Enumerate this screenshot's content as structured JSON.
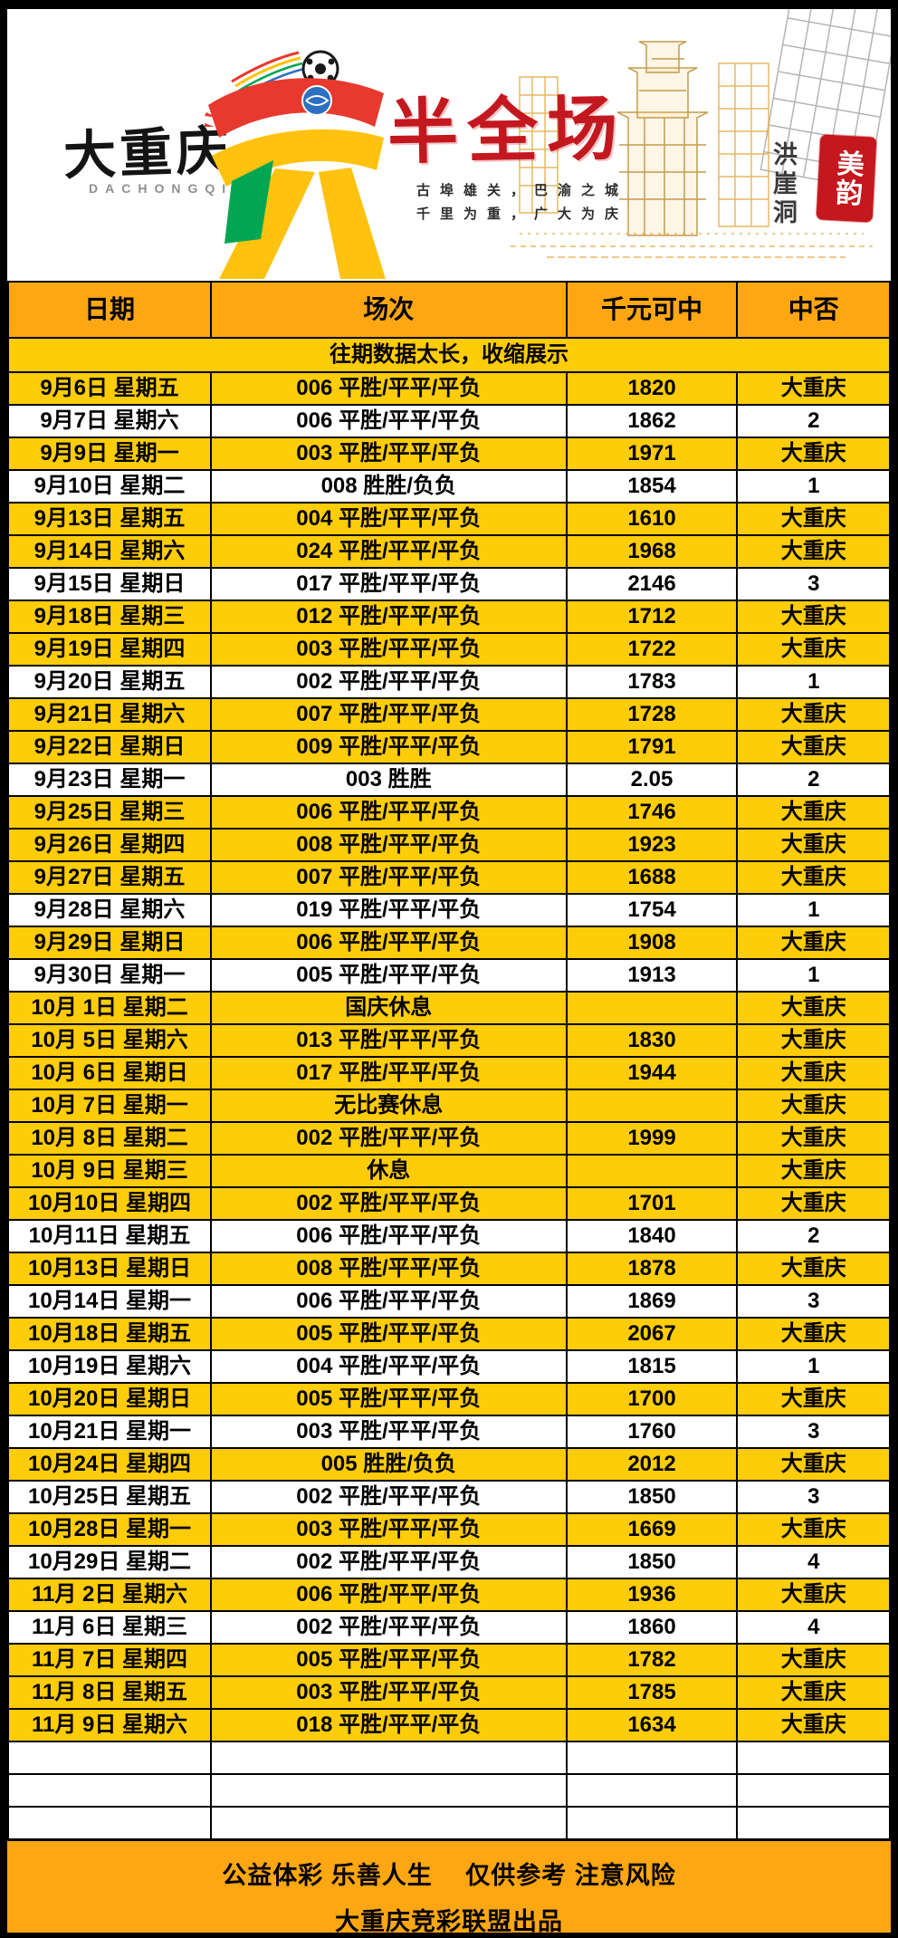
{
  "header": {
    "brand": "大重庆",
    "brand_latin": "DACHONGQING",
    "title": "半全场",
    "tagline_line1": "古埠雄关，巴渝之城",
    "tagline_line2": "千里为重，广大为庆",
    "landmark": "洪崖洞",
    "seal_text": "美韵"
  },
  "table": {
    "columns": [
      "日期",
      "场次",
      "千元可中",
      "中否"
    ],
    "collapse_notice": "往期数据太长，收缩展示",
    "rows": [
      {
        "date": "9月6日 星期五",
        "match": "006 平胜/平平/平负",
        "odds": "1820",
        "result": "大重庆",
        "gold": true
      },
      {
        "date": "9月7日 星期六",
        "match": "006 平胜/平平/平负",
        "odds": "1862",
        "result": "2",
        "gold": false
      },
      {
        "date": "9月9日 星期一",
        "match": "003 平胜/平平/平负",
        "odds": "1971",
        "result": "大重庆",
        "gold": true
      },
      {
        "date": "9月10日 星期二",
        "match": "008 胜胜/负负",
        "odds": "1854",
        "result": "1",
        "gold": false
      },
      {
        "date": "9月13日 星期五",
        "match": "004 平胜/平平/平负",
        "odds": "1610",
        "result": "大重庆",
        "gold": true
      },
      {
        "date": "9月14日 星期六",
        "match": "024 平胜/平平/平负",
        "odds": "1968",
        "result": "大重庆",
        "gold": true
      },
      {
        "date": "9月15日 星期日",
        "match": "017 平胜/平平/平负",
        "odds": "2146",
        "result": "3",
        "gold": false
      },
      {
        "date": "9月18日 星期三",
        "match": "012 平胜/平平/平负",
        "odds": "1712",
        "result": "大重庆",
        "gold": true
      },
      {
        "date": "9月19日 星期四",
        "match": "003 平胜/平平/平负",
        "odds": "1722",
        "result": "大重庆",
        "gold": true
      },
      {
        "date": "9月20日 星期五",
        "match": "002 平胜/平平/平负",
        "odds": "1783",
        "result": "1",
        "gold": false
      },
      {
        "date": "9月21日 星期六",
        "match": "007 平胜/平平/平负",
        "odds": "1728",
        "result": "大重庆",
        "gold": true
      },
      {
        "date": "9月22日 星期日",
        "match": "009 平胜/平平/平负",
        "odds": "1791",
        "result": "大重庆",
        "gold": true
      },
      {
        "date": "9月23日 星期一",
        "match": "003 胜胜",
        "odds": "2.05",
        "result": "2",
        "gold": false
      },
      {
        "date": "9月25日 星期三",
        "match": "006 平胜/平平/平负",
        "odds": "1746",
        "result": "大重庆",
        "gold": true
      },
      {
        "date": "9月26日 星期四",
        "match": "008 平胜/平平/平负",
        "odds": "1923",
        "result": "大重庆",
        "gold": true
      },
      {
        "date": "9月27日 星期五",
        "match": "007 平胜/平平/平负",
        "odds": "1688",
        "result": "大重庆",
        "gold": true
      },
      {
        "date": "9月28日 星期六",
        "match": "019 平胜/平平/平负",
        "odds": "1754",
        "result": "1",
        "gold": false
      },
      {
        "date": "9月29日 星期日",
        "match": "006 平胜/平平/平负",
        "odds": "1908",
        "result": "大重庆",
        "gold": true
      },
      {
        "date": "9月30日 星期一",
        "match": "005 平胜/平平/平负",
        "odds": "1913",
        "result": "1",
        "gold": false
      },
      {
        "date": "10月 1日 星期二",
        "match": "国庆休息",
        "odds": "",
        "result": "大重庆",
        "gold": true
      },
      {
        "date": "10月 5日 星期六",
        "match": "013 平胜/平平/平负",
        "odds": "1830",
        "result": "大重庆",
        "gold": true
      },
      {
        "date": "10月 6日 星期日",
        "match": "017 平胜/平平/平负",
        "odds": "1944",
        "result": "大重庆",
        "gold": true
      },
      {
        "date": "10月 7日 星期一",
        "match": "无比赛休息",
        "odds": "",
        "result": "大重庆",
        "gold": true
      },
      {
        "date": "10月 8日 星期二",
        "match": "002 平胜/平平/平负",
        "odds": "1999",
        "result": "大重庆",
        "gold": true
      },
      {
        "date": "10月 9日 星期三",
        "match": "休息",
        "odds": "",
        "result": "大重庆",
        "gold": true
      },
      {
        "date": "10月10日 星期四",
        "match": "002 平胜/平平/平负",
        "odds": "1701",
        "result": "大重庆",
        "gold": true
      },
      {
        "date": "10月11日 星期五",
        "match": "006 平胜/平平/平负",
        "odds": "1840",
        "result": "2",
        "gold": false
      },
      {
        "date": "10月13日 星期日",
        "match": "008 平胜/平平/平负",
        "odds": "1878",
        "result": "大重庆",
        "gold": true
      },
      {
        "date": "10月14日 星期一",
        "match": "006 平胜/平平/平负",
        "odds": "1869",
        "result": "3",
        "gold": false
      },
      {
        "date": "10月18日 星期五",
        "match": "005 平胜/平平/平负",
        "odds": "2067",
        "result": "大重庆",
        "gold": true
      },
      {
        "date": "10月19日 星期六",
        "match": "004 平胜/平平/平负",
        "odds": "1815",
        "result": "1",
        "gold": false
      },
      {
        "date": "10月20日 星期日",
        "match": "005 平胜/平平/平负",
        "odds": "1700",
        "result": "大重庆",
        "gold": true
      },
      {
        "date": "10月21日 星期一",
        "match": "003 平胜/平平/平负",
        "odds": "1760",
        "result": "3",
        "gold": false
      },
      {
        "date": "10月24日 星期四",
        "match": "005 胜胜/负负",
        "odds": "2012",
        "result": "大重庆",
        "gold": true
      },
      {
        "date": "10月25日 星期五",
        "match": "002 平胜/平平/平负",
        "odds": "1850",
        "result": "3",
        "gold": false
      },
      {
        "date": "10月28日 星期一",
        "match": "003 平胜/平平/平负",
        "odds": "1669",
        "result": "大重庆",
        "gold": true
      },
      {
        "date": "10月29日 星期二",
        "match": "002 平胜/平平/平负",
        "odds": "1850",
        "result": "4",
        "gold": false
      },
      {
        "date": "11月 2日 星期六",
        "match": "006 平胜/平平/平负",
        "odds": "1936",
        "result": "大重庆",
        "gold": true
      },
      {
        "date": "11月 6日 星期三",
        "match": "002 平胜/平平/平负",
        "odds": "1860",
        "result": "4",
        "gold": false
      },
      {
        "date": "11月 7日 星期四",
        "match": "005 平胜/平平/平负",
        "odds": "1782",
        "result": "大重庆",
        "gold": true
      },
      {
        "date": "11月 8日 星期五",
        "match": "003 平胜/平平/平负",
        "odds": "1785",
        "result": "大重庆",
        "gold": true
      },
      {
        "date": "11月 9日 星期六",
        "match": "018 平胜/平平/平负",
        "odds": "1634",
        "result": "大重庆",
        "gold": true
      }
    ],
    "empty_row_count": 3
  },
  "footer": {
    "line1": "公益体彩 乐善人生　 仅供参考 注意风险",
    "line2": "大重庆竞彩联盟出品"
  },
  "colors": {
    "frame": "#000000",
    "header_row_orange": "#ffa713",
    "gold_row": "#ffcc0a",
    "white_row": "#ffffff",
    "footer_orange": "#ffa713",
    "title_red": "#c3181f",
    "seal_red": "#c5171e",
    "emblem_red": "#e8392f",
    "emblem_yellow": "#ffc20e",
    "emblem_green": "#00a651",
    "emblem_blue": "#2d6fc0"
  }
}
